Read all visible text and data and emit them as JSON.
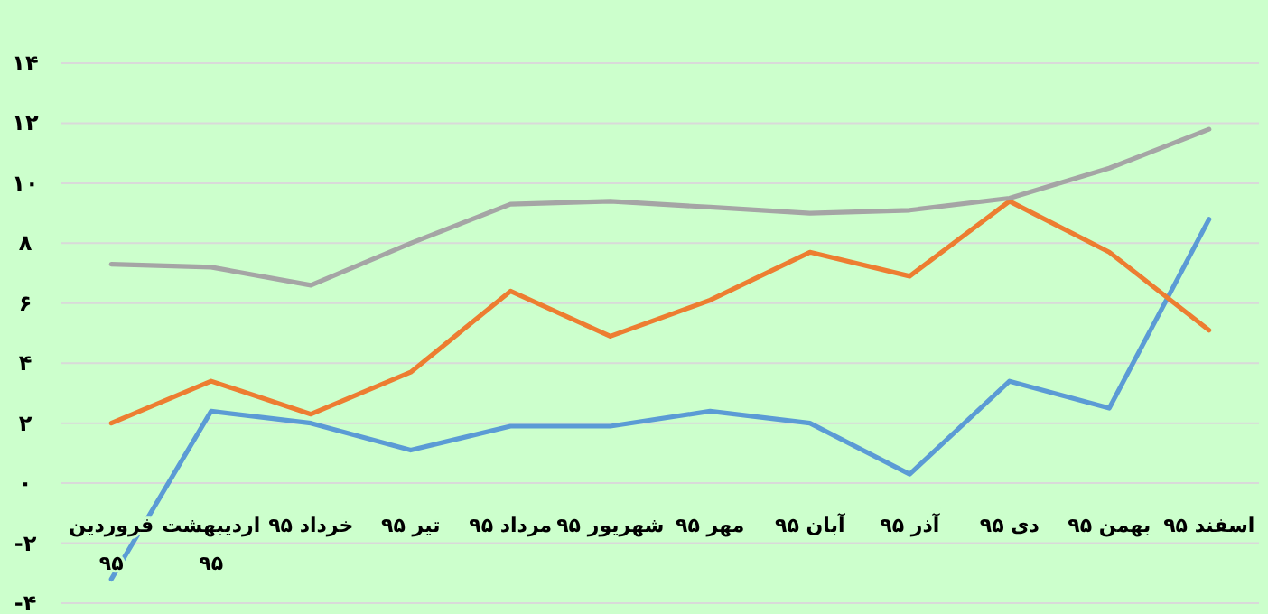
{
  "chart_data": {
    "type": "line",
    "categories": [
      "فروردین ۹۵",
      "اردیبهشت ۹۵",
      "خرداد ۹۵",
      "تیر ۹۵",
      "مرداد ۹۵",
      "شهریور ۹۵",
      "مهر ۹۵",
      "آبان ۹۵",
      "آذر ۹۵",
      "دی ۹۵",
      "بهمن ۹۵",
      "اسفند ۹۵"
    ],
    "series": [
      {
        "color": "#5b9bd5",
        "values": [
          -3.2,
          2.4,
          2.0,
          1.1,
          1.9,
          1.9,
          2.4,
          2.0,
          0.3,
          3.4,
          2.5,
          8.8
        ]
      },
      {
        "color": "#ed7d31",
        "values": [
          2.0,
          3.4,
          2.3,
          3.7,
          6.4,
          4.9,
          6.1,
          7.7,
          6.9,
          9.4,
          7.7,
          5.1
        ]
      },
      {
        "color": "#a5a5a5",
        "values": [
          7.3,
          7.2,
          6.6,
          8.0,
          9.3,
          9.4,
          9.2,
          9.0,
          9.1,
          9.5,
          10.5,
          11.8
        ]
      }
    ],
    "ylim": [
      -4,
      14
    ],
    "yticks": [
      {
        "value": -4,
        "label": "-۴"
      },
      {
        "value": -2,
        "label": "-۲"
      },
      {
        "value": 0,
        "label": "۰"
      },
      {
        "value": 2,
        "label": "۲"
      },
      {
        "value": 4,
        "label": "۴"
      },
      {
        "value": 6,
        "label": "۶"
      },
      {
        "value": 8,
        "label": "۸"
      },
      {
        "value": 10,
        "label": "۱۰"
      },
      {
        "value": 12,
        "label": "۱۲"
      },
      {
        "value": 14,
        "label": "۱۴"
      }
    ],
    "grid": "y",
    "marker": "none",
    "line_style": "solid"
  }
}
